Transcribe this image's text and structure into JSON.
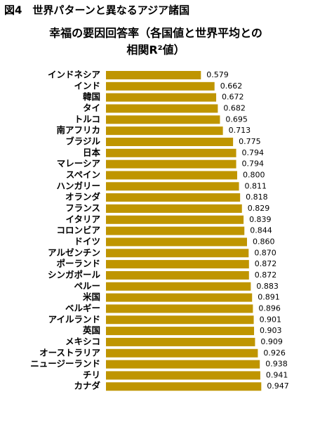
{
  "chart_data": {
    "type": "bar",
    "orientation": "horizontal",
    "title": "図4　世界パターンと異なるアジア諸国",
    "subtitle": [
      "幸福の要因回答率（各国値と世界平均との",
      "相関R²値）"
    ],
    "categories": [
      "インドネシア",
      "インド",
      "韓国",
      "タイ",
      "トルコ",
      "南アフリカ",
      "ブラジル",
      "日本",
      "マレーシア",
      "スペイン",
      "ハンガリー",
      "オランダ",
      "フランス",
      "イタリア",
      "コロンビア",
      "ドイツ",
      "アルゼンチン",
      "ポーランド",
      "シンガポール",
      "ペルー",
      "米国",
      "ベルギー",
      "アイルランド",
      "英国",
      "メキシコ",
      "オーストラリア",
      "ニュージーランド",
      "チリ",
      "カナダ"
    ],
    "values": [
      0.579,
      0.662,
      0.672,
      0.682,
      0.695,
      0.713,
      0.775,
      0.794,
      0.794,
      0.8,
      0.811,
      0.818,
      0.829,
      0.839,
      0.844,
      0.86,
      0.87,
      0.872,
      0.872,
      0.883,
      0.891,
      0.896,
      0.901,
      0.903,
      0.909,
      0.926,
      0.938,
      0.941,
      0.947
    ],
    "value_labels": [
      "0.579",
      "0.662",
      "0.672",
      "0.682",
      "0.695",
      "0.713",
      "0.775",
      "0.794",
      "0.794",
      "0.800",
      "0.811",
      "0.818",
      "0.829",
      "0.839",
      "0.844",
      "0.860",
      "0.870",
      "0.872",
      "0.872",
      "0.883",
      "0.891",
      "0.896",
      "0.901",
      "0.903",
      "0.909",
      "0.926",
      "0.938",
      "0.941",
      "0.947"
    ],
    "color": "#bf9500"
  }
}
